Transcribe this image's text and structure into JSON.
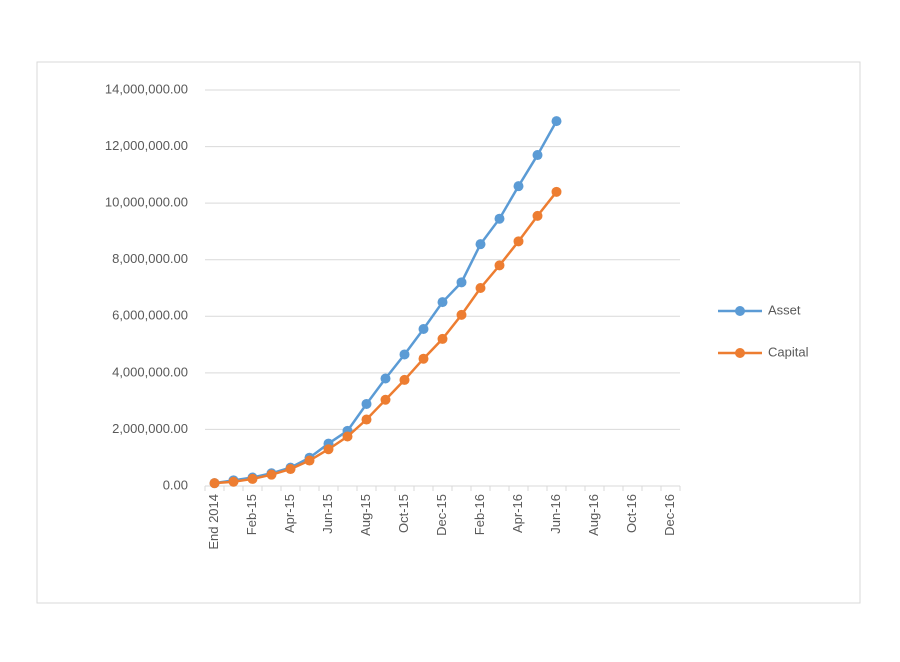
{
  "chart_data": {
    "type": "line",
    "categories": [
      "End 2014",
      null,
      "Feb-15",
      null,
      "Apr-15",
      null,
      "Jun-15",
      null,
      "Aug-15",
      null,
      "Oct-15",
      null,
      "Dec-15",
      null,
      "Feb-16",
      null,
      "Apr-16",
      null,
      "Jun-16",
      null,
      "Aug-16",
      null,
      "Oct-16",
      null,
      "Dec-16"
    ],
    "series": [
      {
        "name": "Asset",
        "color": "#5b9bd5",
        "values": [
          100000,
          200000,
          300000,
          450000,
          650000,
          1000000,
          1500000,
          1950000,
          2900000,
          3800000,
          4650000,
          5550000,
          6500000,
          7200000,
          8550000,
          9450000,
          10600000,
          11700000,
          12900000,
          null,
          null,
          null,
          null,
          null,
          null
        ]
      },
      {
        "name": "Capital",
        "color": "#ed7d31",
        "values": [
          100000,
          150000,
          250000,
          400000,
          600000,
          900000,
          1300000,
          1750000,
          2350000,
          3050000,
          3750000,
          4500000,
          5200000,
          6050000,
          7000000,
          7800000,
          8650000,
          9550000,
          10400000,
          null,
          null,
          null,
          null,
          null,
          null
        ]
      }
    ],
    "ylim": [
      0,
      14000000
    ],
    "yticks": [
      {
        "value": 0,
        "label": "0.00"
      },
      {
        "value": 2000000,
        "label": "2,000,000.00"
      },
      {
        "value": 4000000,
        "label": "4,000,000.00"
      },
      {
        "value": 6000000,
        "label": "6,000,000.00"
      },
      {
        "value": 8000000,
        "label": "8,000,000.00"
      },
      {
        "value": 10000000,
        "label": "10,000,000.00"
      },
      {
        "value": 12000000,
        "label": "12,000,000.00"
      },
      {
        "value": 14000000,
        "label": "14,000,000.00"
      }
    ],
    "grid": true,
    "legend": "right"
  }
}
